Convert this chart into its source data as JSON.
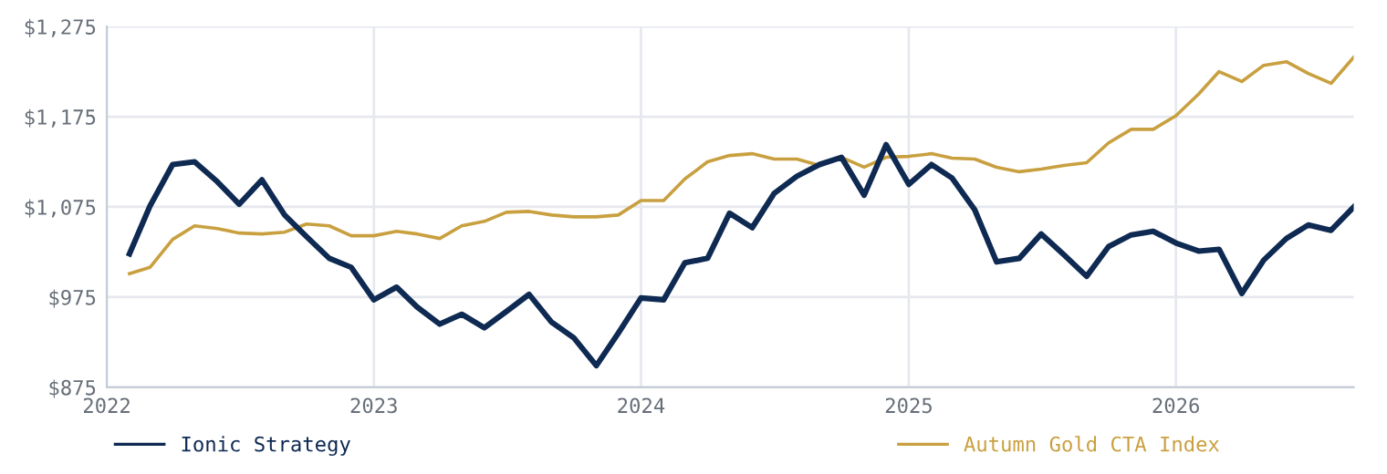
{
  "chart_data": {
    "type": "line",
    "x": [
      "2022-02",
      "2022-03",
      "2022-04",
      "2022-05",
      "2022-06",
      "2022-07",
      "2022-08",
      "2022-09",
      "2022-10",
      "2022-11",
      "2022-12",
      "2023-01",
      "2023-02",
      "2023-03",
      "2023-04",
      "2023-05",
      "2023-06",
      "2023-07",
      "2023-08",
      "2023-09",
      "2023-10",
      "2023-11",
      "2023-12",
      "2024-01",
      "2024-02",
      "2024-03",
      "2024-04",
      "2024-05",
      "2024-06",
      "2024-07",
      "2024-08",
      "2024-09",
      "2024-10",
      "2024-11",
      "2024-12",
      "2025-01",
      "2025-02",
      "2025-03",
      "2025-04",
      "2025-05",
      "2025-06",
      "2025-07",
      "2025-08",
      "2025-09",
      "2025-10",
      "2025-11",
      "2025-12",
      "2026-01",
      "2026-02",
      "2026-03",
      "2026-04",
      "2026-05",
      "2026-06",
      "2026-07",
      "2026-08",
      "2026-09"
    ],
    "series": [
      {
        "name": "Ionic Strategy",
        "color": "#0e2a52",
        "values": [
          1023,
          1076,
          1122,
          1125,
          1103,
          1078,
          1105,
          1066,
          1042,
          1018,
          1008,
          972,
          986,
          964,
          945,
          956,
          941,
          959,
          978,
          947,
          930,
          899,
          935,
          974,
          972,
          1013,
          1018,
          1068,
          1052,
          1090,
          1109,
          1122,
          1130,
          1088,
          1144,
          1100,
          1122,
          1107,
          1072,
          1014,
          1018,
          1045,
          1022,
          998,
          1031,
          1044,
          1048,
          1035,
          1026,
          1028,
          979,
          1016,
          1040,
          1055,
          1049,
          1075
        ]
      },
      {
        "name": "Autumn Gold CTA Index",
        "color": "#c9a040",
        "values": [
          1001,
          1008,
          1039,
          1054,
          1051,
          1046,
          1045,
          1047,
          1056,
          1054,
          1043,
          1043,
          1048,
          1045,
          1040,
          1054,
          1059,
          1069,
          1070,
          1066,
          1064,
          1064,
          1066,
          1082,
          1082,
          1106,
          1125,
          1132,
          1134,
          1128,
          1128,
          1121,
          1130,
          1119,
          1130,
          1131,
          1134,
          1129,
          1128,
          1119,
          1114,
          1117,
          1121,
          1124,
          1146,
          1161,
          1161,
          1176,
          1200,
          1225,
          1214,
          1232,
          1236,
          1223,
          1212,
          1241
        ]
      }
    ],
    "xlim": [
      "2022",
      "2026-09"
    ],
    "xticks": [
      "2022",
      "2023",
      "2024",
      "2025",
      "2026"
    ],
    "ylim": [
      875,
      1275
    ],
    "yticks": [
      {
        "value": 875,
        "label": "$875"
      },
      {
        "value": 975,
        "label": "$975"
      },
      {
        "value": 1075,
        "label": "$1,075"
      },
      {
        "value": 1175,
        "label": "$1,175"
      },
      {
        "value": 1275,
        "label": "$1,275"
      }
    ],
    "grid": true,
    "legend": "bottom",
    "marker": "none",
    "line_style": "solid"
  }
}
